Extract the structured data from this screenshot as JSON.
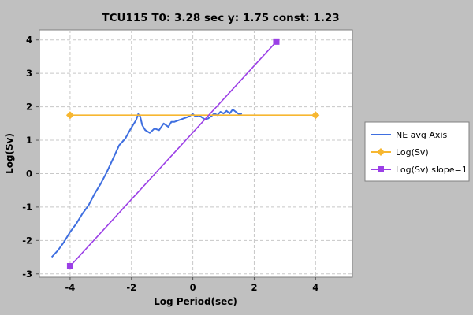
{
  "chart_data": {
    "type": "line",
    "title": "TCU115 T0: 3.28 sec  y: 1.75 const: 1.23",
    "xlabel": "Log Period(sec)",
    "ylabel": "Log(Sv)",
    "xlim": [
      -5,
      5.2
    ],
    "ylim": [
      -3.1,
      4.3
    ],
    "xticks": [
      -4,
      -2,
      0,
      2,
      4
    ],
    "yticks": [
      -3,
      -2,
      -1,
      0,
      1,
      2,
      3,
      4
    ],
    "grid": true,
    "legend_position": "right",
    "series": [
      {
        "name": "NE avg Axis",
        "color": "#3f6fe0",
        "marker": "none",
        "x": [
          -4.6,
          -4.4,
          -4.2,
          -4.0,
          -3.8,
          -3.6,
          -3.4,
          -3.2,
          -3.0,
          -2.8,
          -2.6,
          -2.4,
          -2.2,
          -2.05,
          -1.95,
          -1.85,
          -1.78,
          -1.72,
          -1.65,
          -1.55,
          -1.4,
          -1.25,
          -1.1,
          -0.95,
          -0.8,
          -0.7,
          -0.6,
          -0.45,
          -0.3,
          -0.15,
          0.0,
          0.1,
          0.2,
          0.3,
          0.4,
          0.5,
          0.6,
          0.7,
          0.8,
          0.9,
          1.0,
          1.1,
          1.2,
          1.3,
          1.4,
          1.5,
          1.6
        ],
        "y": [
          -2.5,
          -2.3,
          -2.05,
          -1.75,
          -1.5,
          -1.2,
          -0.95,
          -0.6,
          -0.3,
          0.05,
          0.45,
          0.85,
          1.05,
          1.3,
          1.45,
          1.6,
          1.78,
          1.72,
          1.45,
          1.3,
          1.22,
          1.35,
          1.3,
          1.5,
          1.4,
          1.55,
          1.55,
          1.6,
          1.65,
          1.7,
          1.78,
          1.7,
          1.75,
          1.68,
          1.62,
          1.65,
          1.72,
          1.8,
          1.75,
          1.85,
          1.8,
          1.88,
          1.8,
          1.92,
          1.85,
          1.78,
          1.8
        ]
      },
      {
        "name": "Log(Sv)",
        "color": "#f7b731",
        "marker": "diamond",
        "x": [
          -4,
          4
        ],
        "y": [
          1.75,
          1.75
        ]
      },
      {
        "name": "Log(Sv) slope=1",
        "color": "#9b3fe6",
        "marker": "square",
        "x": [
          -4,
          2.72
        ],
        "y": [
          -2.77,
          3.95
        ]
      }
    ]
  }
}
